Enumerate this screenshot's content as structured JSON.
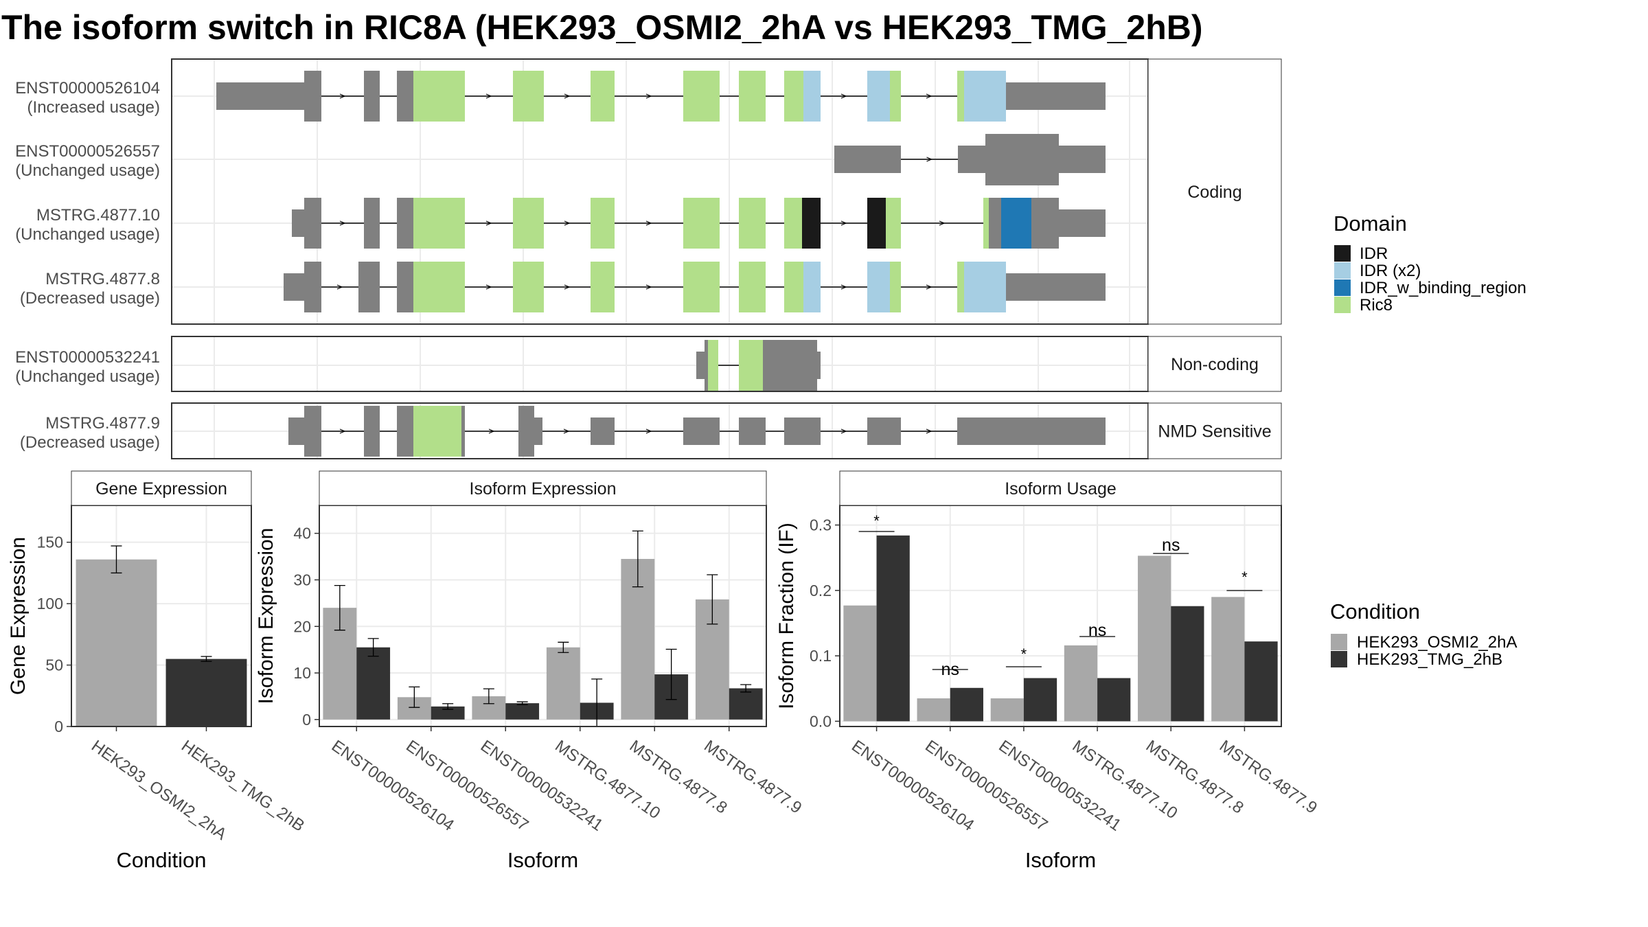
{
  "title": "The isoform switch in RIC8A (HEK293_OSMI2_2hA vs HEK293_TMG_2hB)",
  "colors": {
    "utr": "#808080",
    "cond_a": "#a8a8a8",
    "cond_b": "#333333",
    "domains": {
      "IDR": "#1a1a1a",
      "IDR (x2)": "#a6cee3",
      "IDR_w_binding_region": "#1f78b4",
      "Ric8": "#b2df8a"
    }
  },
  "structure": {
    "panels": [
      {
        "label": "Coding",
        "rows": [
          {
            "name": "ENST00000526104",
            "usage": "(Increased usage)"
          },
          {
            "name": "ENST00000526557",
            "usage": "(Unchanged usage)"
          },
          {
            "name": "MSTRG.4877.10",
            "usage": "(Unchanged usage)"
          },
          {
            "name": "MSTRG.4877.8",
            "usage": "(Decreased usage)"
          }
        ]
      },
      {
        "label": "Non-coding",
        "rows": [
          {
            "name": "ENST00000532241",
            "usage": "(Unchanged usage)"
          }
        ]
      },
      {
        "label": "NMD Sensitive",
        "rows": [
          {
            "name": "MSTRG.4877.9",
            "usage": "(Decreased usage)"
          }
        ]
      }
    ],
    "domain_legend": {
      "title": "Domain",
      "items": [
        "IDR",
        "IDR (x2)",
        "IDR_w_binding_region",
        "Ric8"
      ]
    }
  },
  "chart_data": [
    {
      "type": "bar",
      "title": "Gene Expression",
      "xlabel": "Condition",
      "ylabel": "Gene Expression",
      "ylim": [
        0,
        180
      ],
      "yticks": [
        0,
        50,
        100,
        150
      ],
      "categories": [
        "HEK293_OSMI2_2hA",
        "HEK293_TMG_2hB"
      ],
      "values": [
        136,
        55
      ],
      "errors": [
        [
          125,
          147
        ],
        [
          53,
          57
        ]
      ]
    },
    {
      "type": "bar",
      "title": "Isoform Expression",
      "xlabel": "Isoform",
      "ylabel": "Isoform Expression",
      "ylim": [
        -1.5,
        46
      ],
      "yticks": [
        0,
        10,
        20,
        30,
        40
      ],
      "categories": [
        "ENST00000526104",
        "ENST00000526557",
        "ENST00000532241",
        "MSTRG.4877.10",
        "MSTRG.4877.8",
        "MSTRG.4877.9"
      ],
      "series": [
        {
          "name": "HEK293_OSMI2_2hA",
          "values": [
            24,
            4.8,
            5,
            15.5,
            34.5,
            25.8
          ],
          "errors": [
            [
              19.2,
              28.8
            ],
            [
              2.6,
              7.0
            ],
            [
              3.4,
              6.6
            ],
            [
              14.4,
              16.6
            ],
            [
              28.5,
              40.5
            ],
            [
              20.5,
              31.1
            ]
          ]
        },
        {
          "name": "HEK293_TMG_2hB",
          "values": [
            15.5,
            2.8,
            3.5,
            3.6,
            9.7,
            6.7
          ],
          "errors": [
            [
              13.6,
              17.4
            ],
            [
              2.2,
              3.4
            ],
            [
              3.2,
              3.8
            ],
            [
              -1.5,
              8.7
            ],
            [
              4.3,
              15.1
            ],
            [
              5.9,
              7.5
            ]
          ]
        }
      ]
    },
    {
      "type": "bar",
      "title": "Isoform Usage",
      "xlabel": "Isoform",
      "ylabel": "Isoform Fraction (IF)",
      "ylim": [
        -0.008,
        0.33
      ],
      "yticks": [
        0.0,
        0.1,
        0.2,
        0.3
      ],
      "ytick_labels": [
        "0.0",
        "0.1",
        "0.2",
        "0.3"
      ],
      "categories": [
        "ENST00000526104",
        "ENST00000526557",
        "ENST00000532241",
        "MSTRG.4877.10",
        "MSTRG.4877.8",
        "MSTRG.4877.9"
      ],
      "series": [
        {
          "name": "HEK293_OSMI2_2hA",
          "values": [
            0.177,
            0.035,
            0.035,
            0.116,
            0.253,
            0.19
          ]
        },
        {
          "name": "HEK293_TMG_2hB",
          "values": [
            0.284,
            0.051,
            0.066,
            0.066,
            0.176,
            0.122
          ]
        }
      ],
      "significance": [
        "*",
        "ns",
        "*",
        "ns",
        "ns",
        "*"
      ]
    }
  ],
  "condition_legend": {
    "title": "Condition",
    "items": [
      "HEK293_OSMI2_2hA",
      "HEK293_TMG_2hB"
    ]
  }
}
